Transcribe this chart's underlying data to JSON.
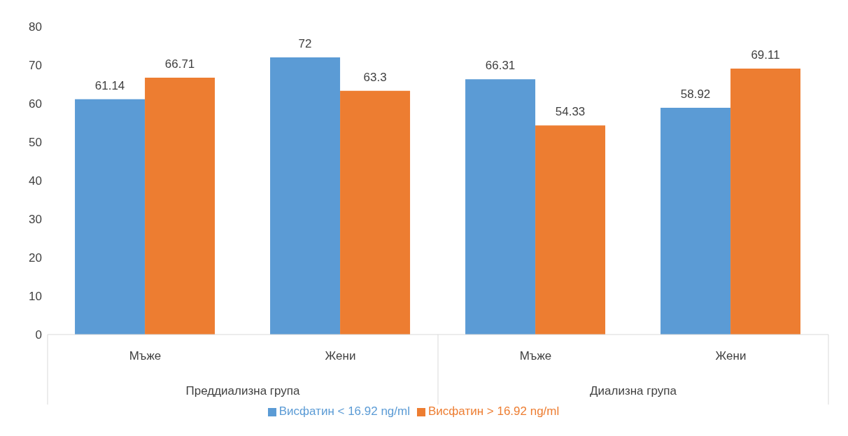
{
  "chart_data": {
    "type": "bar",
    "categories": [
      "Мъже",
      "Жени",
      "Мъже",
      "Жени"
    ],
    "annotations": [
      "Преддиализна група",
      "Диализна група"
    ],
    "series": [
      {
        "name": "Висфатин < 16.92 ng/ml",
        "color": "#5b9bd5",
        "values": [
          61.14,
          72,
          66.31,
          58.92
        ]
      },
      {
        "name": "Висфатин > 16.92 ng/ml",
        "color": "#ed7d31",
        "values": [
          66.71,
          63.3,
          54.33,
          69.11
        ]
      }
    ],
    "ylim": [
      0,
      80
    ],
    "yticks": [
      0,
      10,
      20,
      30,
      40,
      50,
      60,
      70,
      80
    ],
    "grid": false,
    "data_labels": true,
    "legend": "bottom"
  }
}
